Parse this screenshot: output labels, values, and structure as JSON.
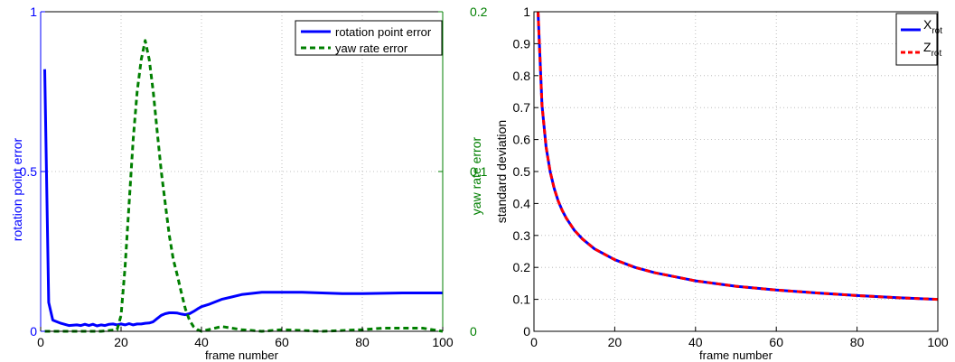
{
  "chart_data": [
    {
      "type": "line",
      "title": "",
      "xlabel": "frame number",
      "ylabel_left": "rotation point error",
      "ylabel_right": "yaw rate error",
      "xlim": [
        0,
        100
      ],
      "ylim_left": [
        0,
        1
      ],
      "ylim_right": [
        0,
        0.2
      ],
      "x_ticks": [
        "0",
        "20",
        "40",
        "60",
        "80",
        "100"
      ],
      "y_ticks_left": [
        "0",
        "0.5",
        "1"
      ],
      "y_ticks_right": [
        "0",
        "0.1",
        "0.2"
      ],
      "grid": true,
      "legend_position": "top-right",
      "colors": {
        "left_axis": "#0000ff",
        "right_axis": "#007f00"
      },
      "series": [
        {
          "name": "rotation point error",
          "axis": "left",
          "color": "#0000ff",
          "style": "solid",
          "x": [
            1,
            2,
            3,
            5,
            7,
            9,
            10,
            11,
            12,
            13,
            14,
            15,
            16,
            17,
            18,
            19,
            20,
            21,
            22,
            23,
            24,
            25,
            26,
            27,
            28,
            29,
            30,
            31,
            32,
            33,
            34,
            35,
            36,
            37,
            38,
            39,
            40,
            42,
            45,
            50,
            55,
            60,
            65,
            70,
            75,
            80,
            85,
            90,
            95,
            100
          ],
          "y": [
            0.82,
            0.09,
            0.035,
            0.025,
            0.018,
            0.02,
            0.018,
            0.022,
            0.018,
            0.022,
            0.017,
            0.02,
            0.018,
            0.022,
            0.023,
            0.02,
            0.023,
            0.02,
            0.024,
            0.02,
            0.023,
            0.023,
            0.025,
            0.026,
            0.03,
            0.04,
            0.05,
            0.055,
            0.058,
            0.058,
            0.057,
            0.054,
            0.052,
            0.055,
            0.062,
            0.07,
            0.077,
            0.085,
            0.1,
            0.115,
            0.122,
            0.122,
            0.122,
            0.12,
            0.118,
            0.118,
            0.119,
            0.12,
            0.12,
            0.12
          ]
        },
        {
          "name": "yaw rate error",
          "axis": "right",
          "color": "#007f00",
          "style": "dashed",
          "x": [
            1,
            5,
            10,
            15,
            19,
            20,
            21,
            22,
            23,
            24,
            25,
            26,
            27,
            28,
            29,
            30,
            31,
            32,
            33,
            34,
            35,
            36,
            37,
            38,
            39,
            40,
            45,
            50,
            55,
            60,
            70,
            80,
            85,
            90,
            95,
            100
          ],
          "y": [
            0,
            0,
            0,
            0,
            0.001,
            0.01,
            0.04,
            0.08,
            0.12,
            0.15,
            0.17,
            0.182,
            0.17,
            0.15,
            0.125,
            0.1,
            0.08,
            0.06,
            0.045,
            0.035,
            0.024,
            0.014,
            0.007,
            0.003,
            0.001,
            0.0,
            0.003,
            0.001,
            0.0,
            0.001,
            0.0,
            0.001,
            0.002,
            0.002,
            0.002,
            0.0
          ]
        }
      ]
    },
    {
      "type": "line",
      "title": "",
      "xlabel": "frame number",
      "ylabel": "standard deviation",
      "xlim": [
        0,
        100
      ],
      "ylim": [
        0,
        1
      ],
      "x_ticks": [
        "0",
        "20",
        "40",
        "60",
        "80",
        "100"
      ],
      "y_ticks": [
        "0",
        "0.1",
        "0.2",
        "0.3",
        "0.4",
        "0.5",
        "0.6",
        "0.7",
        "0.8",
        "0.9",
        "1"
      ],
      "grid": true,
      "legend_position": "top-right",
      "series": [
        {
          "name": "X",
          "name_subscript": "rot",
          "color": "#0000ff",
          "style": "solid",
          "x": [
            1,
            2,
            3,
            4,
            5,
            6,
            7,
            8,
            10,
            12,
            15,
            20,
            25,
            30,
            40,
            50,
            60,
            70,
            80,
            90,
            100
          ],
          "y": [
            1.0,
            0.707,
            0.577,
            0.5,
            0.447,
            0.408,
            0.378,
            0.354,
            0.316,
            0.289,
            0.258,
            0.224,
            0.2,
            0.183,
            0.158,
            0.141,
            0.129,
            0.12,
            0.112,
            0.105,
            0.1
          ]
        },
        {
          "name": "Z",
          "name_subscript": "rot",
          "color": "#ff0000",
          "style": "dashed",
          "x": [
            1,
            2,
            3,
            4,
            5,
            6,
            7,
            8,
            10,
            12,
            15,
            20,
            25,
            30,
            40,
            50,
            60,
            70,
            80,
            90,
            100
          ],
          "y": [
            1.0,
            0.707,
            0.577,
            0.5,
            0.447,
            0.408,
            0.378,
            0.354,
            0.316,
            0.289,
            0.258,
            0.224,
            0.2,
            0.183,
            0.158,
            0.141,
            0.129,
            0.12,
            0.112,
            0.105,
            0.1
          ]
        }
      ]
    }
  ]
}
